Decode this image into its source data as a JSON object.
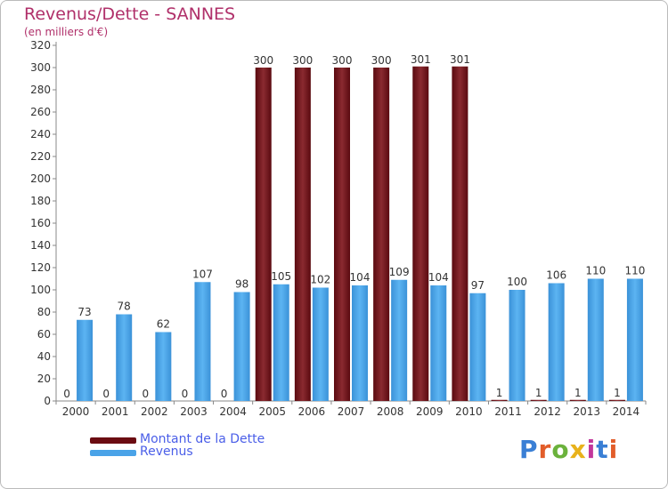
{
  "header": {
    "title": "Revenus/Dette - SANNES",
    "subtitle": "(en milliers d'€)"
  },
  "legend": [
    {
      "label": "Montant de la Dette",
      "color": "#6b0c12"
    },
    {
      "label": "Revenus",
      "color": "#4aa3e8"
    }
  ],
  "logo": {
    "text": "Proxiti",
    "colors": [
      "#3a7fd5",
      "#e25d2a",
      "#6bb23c",
      "#e8b21b",
      "#c2379b",
      "#3a7fd5",
      "#e25d2a"
    ]
  },
  "chart_data": {
    "type": "bar",
    "title": "Revenus/Dette - SANNES",
    "subtitle": "(en milliers d'€)",
    "categories": [
      "2000",
      "2001",
      "2002",
      "2003",
      "2004",
      "2005",
      "2006",
      "2007",
      "2008",
      "2009",
      "2010",
      "2011",
      "2012",
      "2013",
      "2014"
    ],
    "series": [
      {
        "name": "Montant de la Dette",
        "values": [
          0,
          0,
          0,
          0,
          0,
          300,
          300,
          300,
          300,
          301,
          301,
          1,
          1,
          1,
          1
        ],
        "color": "#6b0c12"
      },
      {
        "name": "Revenus",
        "values": [
          73,
          78,
          62,
          107,
          98,
          105,
          102,
          104,
          109,
          104,
          97,
          100,
          106,
          110,
          110
        ],
        "color": "#4aa3e8"
      }
    ],
    "ylim": [
      0,
      320
    ],
    "yticks": [
      0,
      20,
      40,
      60,
      80,
      100,
      120,
      140,
      160,
      180,
      200,
      220,
      240,
      260,
      280,
      300,
      320
    ],
    "grid": false,
    "legend_position": "bottom-left"
  }
}
